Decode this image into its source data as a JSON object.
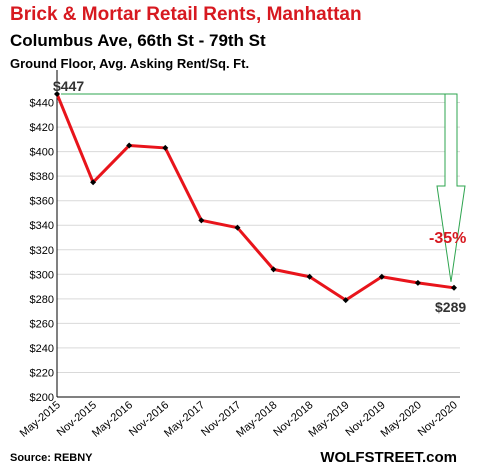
{
  "header": {
    "title": "Brick & Mortar Retail Rents, Manhattan",
    "subtitle": "Columbus Ave, 66th St - 79th St",
    "subtitle2": "Ground Floor, Avg. Asking Rent/Sq. Ft."
  },
  "footer": {
    "source": "Source: REBNY",
    "brand": "WOLFSTREET.com"
  },
  "colors": {
    "title": "#d71920",
    "line": "#e8141b",
    "marker": "#000000",
    "arrow": "#2ea44f",
    "grid": "#d9d9d9",
    "annotation": "#d71920"
  },
  "chart_data": {
    "type": "line",
    "title": "Brick & Mortar Retail Rents, Manhattan",
    "subtitle": "Columbus Ave, 66th St - 79th St",
    "ylabel": "Ground Floor, Avg. Asking Rent/Sq. Ft.",
    "xlabel": "",
    "ylim": [
      200,
      460
    ],
    "y_ticks": [
      200,
      220,
      240,
      260,
      280,
      300,
      320,
      340,
      360,
      380,
      400,
      420,
      440
    ],
    "y_tick_labels": [
      "$200",
      "$220",
      "$240",
      "$260",
      "$280",
      "$300",
      "$320",
      "$340",
      "$360",
      "$380",
      "$400",
      "$420",
      "$440"
    ],
    "categories": [
      "May-2015",
      "Nov-2015",
      "May-2016",
      "Nov-2016",
      "May-2017",
      "Nov-2017",
      "May-2018",
      "Nov-2018",
      "May-2019",
      "Nov-2019",
      "May-2020",
      "Nov-2020"
    ],
    "grid": true,
    "series": [
      {
        "values": [
          447,
          375,
          405,
          403,
          344,
          338,
          304,
          298,
          279,
          298,
          293,
          289
        ]
      }
    ],
    "annotations": {
      "start_label": "$447",
      "end_label": "$289",
      "change_label": "-35%"
    }
  }
}
